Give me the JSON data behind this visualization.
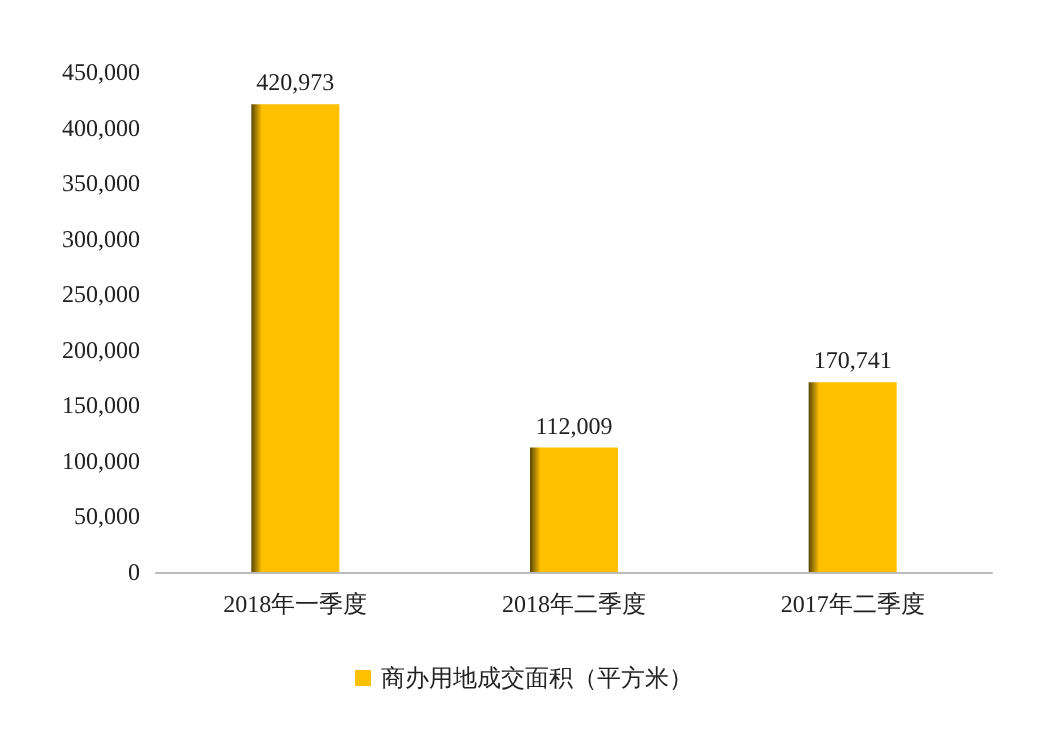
{
  "chart_data": {
    "type": "bar",
    "categories": [
      "2018年一季度",
      "2018年二季度",
      "2017年二季度"
    ],
    "series": [
      {
        "name": "商办用地成交面积（平方米）",
        "color": "#ffc000",
        "values": [
          420973,
          112009,
          170741
        ],
        "value_labels": [
          "420,973",
          "112,009",
          "170,741"
        ]
      }
    ],
    "ylim": [
      0,
      450000
    ],
    "yticks": [
      {
        "value": 0,
        "label": "0"
      },
      {
        "value": 50000,
        "label": "50,000"
      },
      {
        "value": 100000,
        "label": "100,000"
      },
      {
        "value": 150000,
        "label": "150,000"
      },
      {
        "value": 200000,
        "label": "200,000"
      },
      {
        "value": 250000,
        "label": "250,000"
      },
      {
        "value": 300000,
        "label": "300,000"
      },
      {
        "value": 350000,
        "label": "350,000"
      },
      {
        "value": 400000,
        "label": "400,000"
      },
      {
        "value": 450000,
        "label": "450,000"
      }
    ],
    "grid": false,
    "legend": "bottom"
  }
}
